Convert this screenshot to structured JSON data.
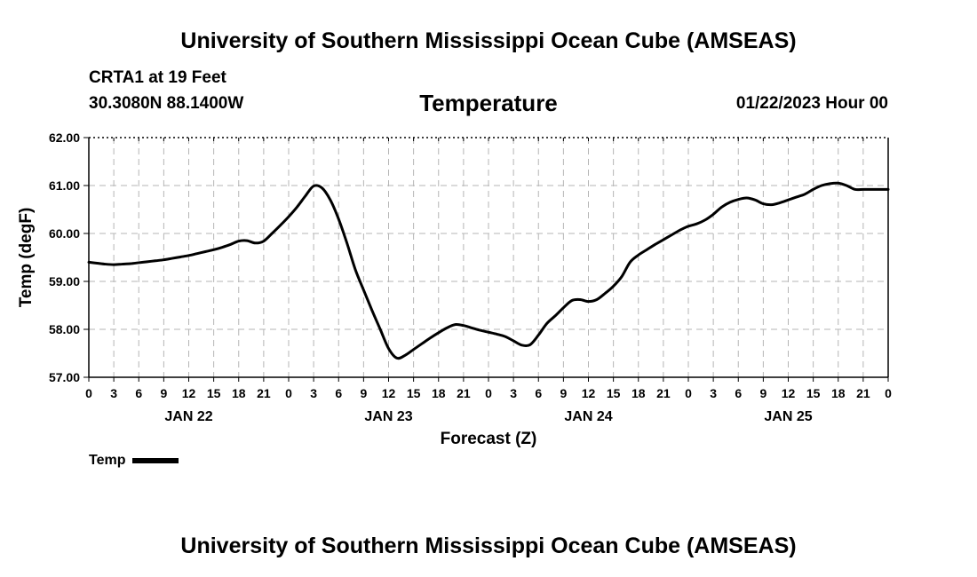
{
  "header": {
    "title": "University of Southern Mississippi Ocean Cube (AMSEAS)",
    "station": "CRTA1 at 19 Feet",
    "coords": "30.3080N  88.1400W",
    "variable": "Temperature",
    "datestamp": "01/22/2023 Hour 00"
  },
  "footer": {
    "title": "University of Southern Mississippi Ocean Cube (AMSEAS)"
  },
  "legend": {
    "label": "Temp"
  },
  "chart_data": {
    "type": "line",
    "title": "Temperature",
    "xlabel": "Forecast (Z)",
    "ylabel": "Temp (degF)",
    "xlim": [
      0,
      96
    ],
    "ylim": [
      57.0,
      62.0
    ],
    "y_ticks": [
      "57.00",
      "58.00",
      "59.00",
      "60.00",
      "61.00",
      "62.00"
    ],
    "x_tick_labels": [
      "0",
      "3",
      "6",
      "9",
      "12",
      "15",
      "18",
      "21",
      "0",
      "3",
      "6",
      "9",
      "12",
      "15",
      "18",
      "21",
      "0",
      "3",
      "6",
      "9",
      "12",
      "15",
      "18",
      "21",
      "0",
      "3",
      "6",
      "9",
      "12",
      "15",
      "18",
      "21",
      "0"
    ],
    "day_labels": [
      {
        "label": "JAN 22",
        "hour": 12
      },
      {
        "label": "JAN 23",
        "hour": 36
      },
      {
        "label": "JAN 24",
        "hour": 60
      },
      {
        "label": "JAN 25",
        "hour": 84
      }
    ],
    "grid": true,
    "series": [
      {
        "name": "Temp",
        "color": "#000000",
        "x": [
          0,
          1,
          2,
          3,
          4,
          5,
          6,
          7,
          8,
          9,
          10,
          11,
          12,
          13,
          14,
          15,
          16,
          17,
          18,
          19,
          20,
          21,
          22,
          23,
          24,
          25,
          26,
          27,
          28,
          29,
          30,
          31,
          32,
          33,
          34,
          35,
          36,
          37,
          38,
          39,
          40,
          41,
          42,
          43,
          44,
          45,
          46,
          47,
          48,
          49,
          50,
          51,
          52,
          53,
          54,
          55,
          56,
          57,
          58,
          59,
          60,
          61,
          62,
          63,
          64,
          65,
          66,
          67,
          68,
          69,
          70,
          71,
          72,
          73,
          74,
          75,
          76,
          77,
          78,
          79,
          80,
          81,
          82,
          83,
          84,
          85,
          86,
          87,
          88,
          89,
          90,
          91,
          92,
          93,
          94,
          95,
          96
        ],
        "values": [
          59.4,
          59.38,
          59.36,
          59.35,
          59.36,
          59.37,
          59.39,
          59.41,
          59.43,
          59.45,
          59.48,
          59.51,
          59.54,
          59.58,
          59.62,
          59.66,
          59.71,
          59.77,
          59.84,
          59.85,
          59.8,
          59.84,
          60.0,
          60.17,
          60.35,
          60.55,
          60.78,
          60.99,
          60.95,
          60.7,
          60.3,
          59.8,
          59.25,
          58.82,
          58.4,
          58.0,
          57.6,
          57.4,
          57.46,
          57.58,
          57.7,
          57.82,
          57.93,
          58.03,
          58.1,
          58.08,
          58.03,
          57.98,
          57.94,
          57.9,
          57.85,
          57.76,
          57.67,
          57.68,
          57.88,
          58.12,
          58.28,
          58.45,
          58.6,
          58.62,
          58.58,
          58.62,
          58.75,
          58.9,
          59.1,
          59.4,
          59.55,
          59.66,
          59.77,
          59.87,
          59.97,
          60.07,
          60.15,
          60.2,
          60.28,
          60.4,
          60.55,
          60.65,
          60.71,
          60.74,
          60.7,
          60.62,
          60.6,
          60.64,
          60.7,
          60.76,
          60.82,
          60.92,
          61.0,
          61.04,
          61.05,
          61.0,
          60.92,
          60.92,
          60.92,
          60.92,
          60.92
        ]
      }
    ]
  }
}
